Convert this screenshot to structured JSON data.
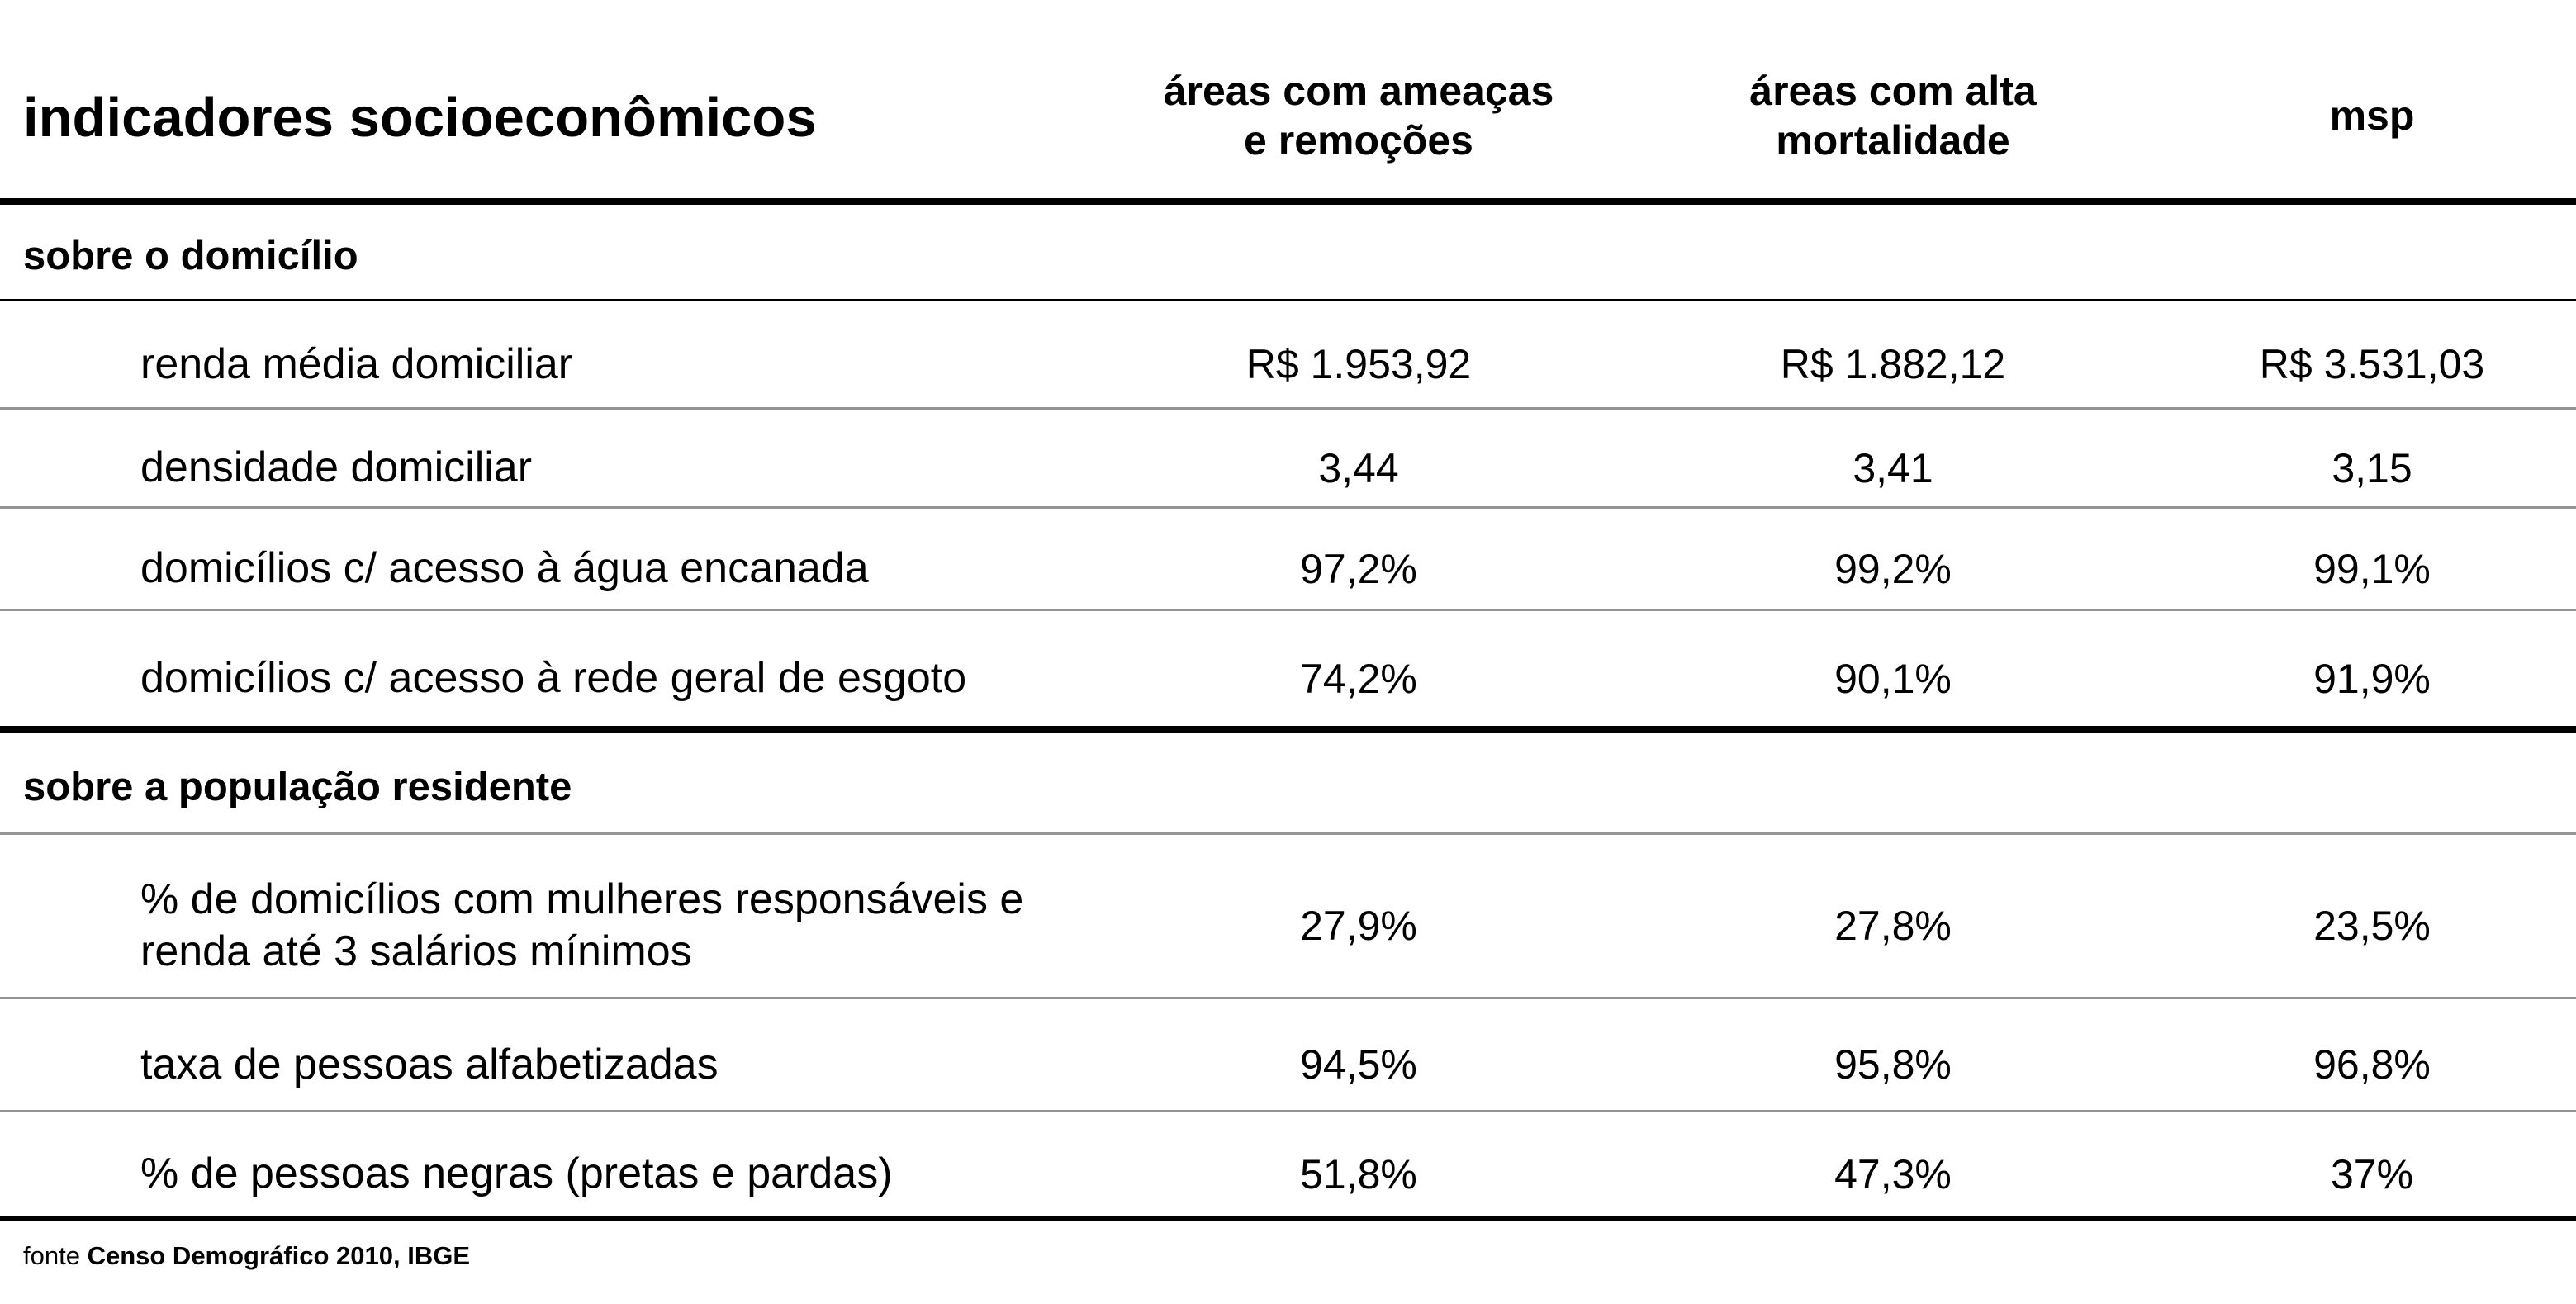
{
  "chart_data": {
    "type": "table",
    "title": "indicadores socioeconômicos",
    "columns": [
      "áreas com ameaças\ne remoções",
      "áreas com alta\nmortalidade",
      "msp"
    ],
    "sections": [
      {
        "label": "sobre o domicílio",
        "rows": [
          {
            "label": "renda média domiciliar",
            "values": [
              "R$ 1.953,92",
              "R$ 1.882,12",
              "R$ 3.531,03"
            ]
          },
          {
            "label": "densidade domiciliar",
            "values": [
              "3,44",
              "3,41",
              "3,15"
            ]
          },
          {
            "label": "domicílios c/ acesso à água encanada",
            "values": [
              "97,2%",
              "99,2%",
              "99,1%"
            ]
          },
          {
            "label": "domicílios c/ acesso à rede geral de esgoto",
            "values": [
              "74,2%",
              "90,1%",
              "91,9%"
            ]
          }
        ]
      },
      {
        "label": "sobre a população residente",
        "rows": [
          {
            "label": "% de domicílios com mulheres responsáveis e\nrenda até 3 salários mínimos",
            "values": [
              "27,9%",
              "27,8%",
              "23,5%"
            ]
          },
          {
            "label": "taxa de pessoas alfabetizadas",
            "values": [
              "94,5%",
              "95,8%",
              "96,8%"
            ]
          },
          {
            "label": "% de pessoas negras (pretas e pardas)",
            "values": [
              "51,8%",
              "47,3%",
              "37%"
            ]
          }
        ]
      }
    ],
    "source_prefix": "fonte",
    "source": "Censo Demográfico 2010, IBGE"
  },
  "colors": {
    "text": "#000000",
    "divider": "#949494",
    "heavy_rule": "#000000",
    "background": "#ffffff"
  }
}
